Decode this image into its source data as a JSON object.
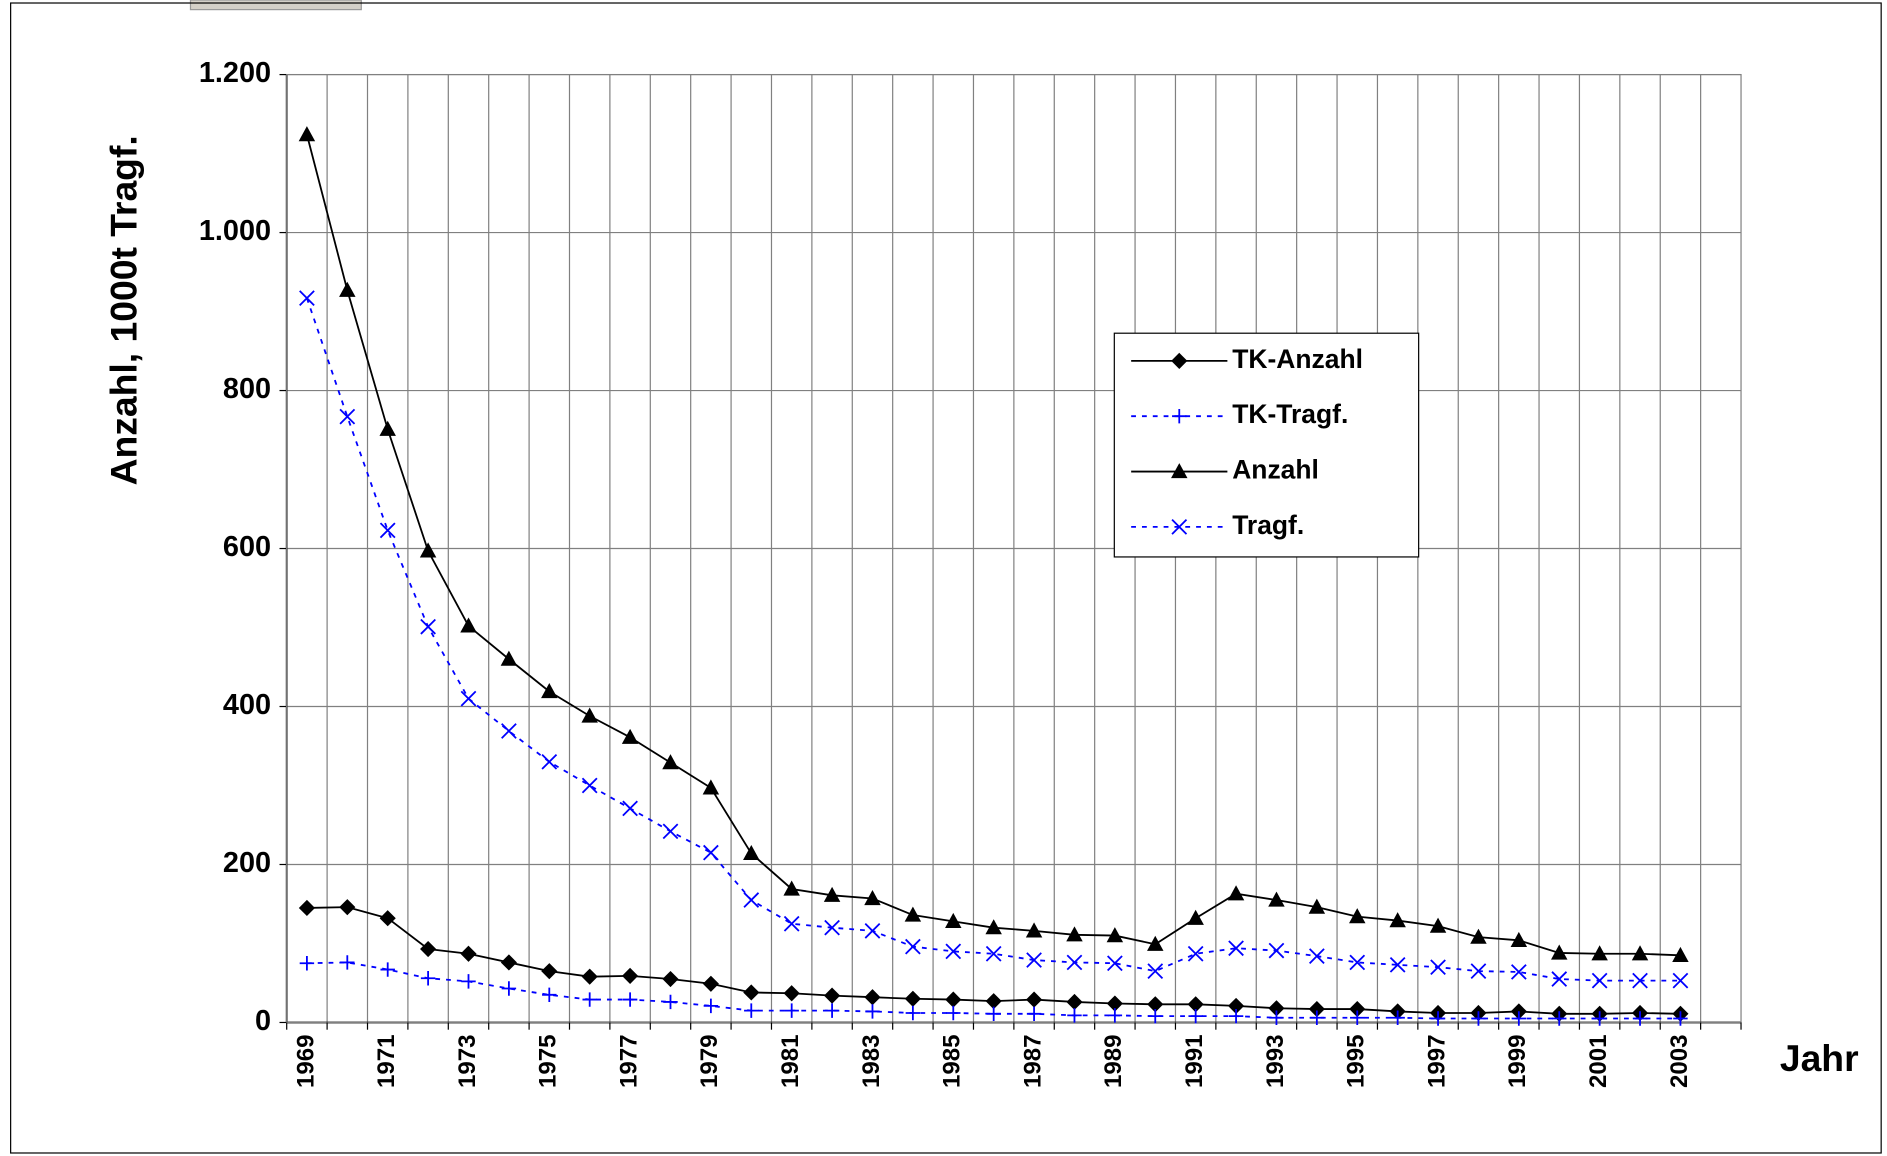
{
  "chart_data": {
    "type": "line",
    "y_label": "Anzahl, 1000t Tragf.",
    "x_label": "Jahr",
    "categories": [
      "1969",
      null,
      "1971",
      null,
      "1973",
      null,
      "1975",
      null,
      "1977",
      null,
      "1979",
      null,
      "1981",
      null,
      "1983",
      null,
      "1985",
      null,
      "1987",
      null,
      "1989",
      null,
      "1991",
      null,
      "1993",
      null,
      "1995",
      null,
      "1997",
      null,
      "1999",
      null,
      "2001",
      null,
      "2003",
      null
    ],
    "ylim": [
      0,
      1200
    ],
    "yticks": [
      0,
      200,
      400,
      600,
      800,
      {
        "value": 1000,
        "label": "1.000"
      },
      {
        "value": 1200,
        "label": "1.200"
      }
    ],
    "grid": true,
    "legend": "upper right",
    "series": [
      {
        "name": "TK-Anzahl",
        "color": "#000000",
        "marker": "diamond",
        "line_style": "solid",
        "values": [
          145,
          146,
          132,
          93,
          87,
          76,
          65,
          58,
          59,
          55,
          49,
          38,
          37,
          34,
          32,
          30,
          29,
          27,
          29,
          26,
          24,
          23,
          23,
          21,
          18,
          17,
          17,
          14,
          12,
          12,
          14,
          11,
          11,
          12,
          11,
          null
        ]
      },
      {
        "name": "TK-Tragf.",
        "color": "#0000ff",
        "marker": "plus",
        "line_style": "dotted",
        "values": [
          75,
          76,
          67,
          56,
          52,
          43,
          35,
          29,
          29,
          26,
          21,
          15,
          15,
          15,
          14,
          12,
          12,
          11,
          11,
          9,
          9,
          8,
          8,
          8,
          6,
          6,
          6,
          6,
          5,
          5,
          5,
          5,
          5,
          5,
          5,
          null
        ]
      },
      {
        "name": "Anzahl",
        "color": "#000000",
        "marker": "triangle",
        "line_style": "solid",
        "values": [
          1124,
          927,
          751,
          597,
          502,
          460,
          419,
          388,
          361,
          329,
          297,
          214,
          169,
          161,
          157,
          136,
          128,
          120,
          116,
          111,
          110,
          99,
          132,
          163,
          155,
          146,
          134,
          129,
          122,
          108,
          104,
          88,
          87,
          87,
          85,
          null
        ]
      },
      {
        "name": "Tragf.",
        "color": "#0000ff",
        "marker": "x",
        "line_style": "dotted",
        "values": [
          917,
          767,
          623,
          501,
          410,
          369,
          330,
          300,
          271,
          242,
          215,
          155,
          125,
          120,
          116,
          96,
          90,
          87,
          79,
          76,
          75,
          65,
          87,
          94,
          91,
          84,
          76,
          73,
          70,
          65,
          64,
          55,
          53,
          53,
          53,
          null
        ]
      }
    ]
  }
}
